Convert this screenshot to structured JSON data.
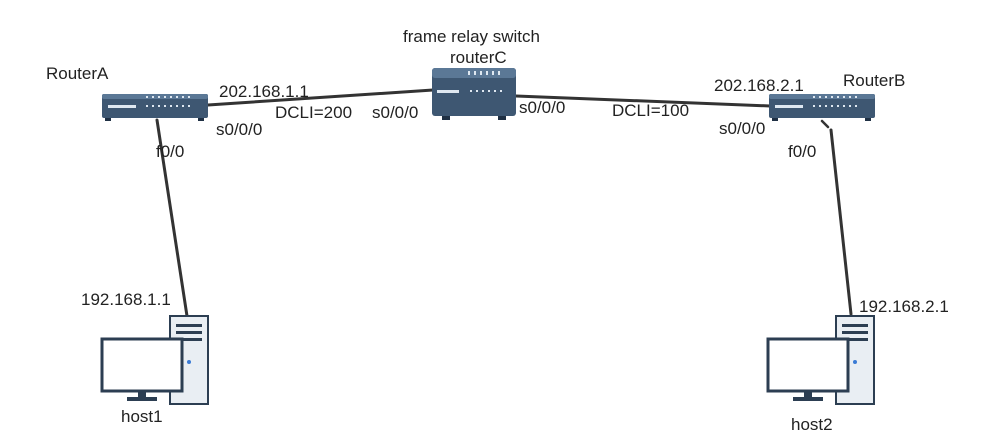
{
  "colors": {
    "device_body": "#3e5772",
    "device_top": "#5b7896",
    "device_dark": "#1f3044",
    "led": "#dfe8f1",
    "link": "#333333",
    "monitor_frame": "#2c3e52",
    "tower": "#e9eef3"
  },
  "labels": {
    "routerA_name": "RouterA",
    "routerB_name": "RouterB",
    "switch_title": "frame relay switch",
    "routerC_name": "routerC",
    "routerA_ip": "202.168.1.1",
    "routerB_ip": "202.168.2.1",
    "dcli_a": "DCLI=200",
    "dcli_b": "DCLI=100",
    "routerA_serial": "s0/0/0",
    "routerC_serial_left": "s0/0/0",
    "routerC_serial_right": "s0/0/0",
    "routerB_serial": "s0/0/0",
    "routerA_fe": "f0/0",
    "routerB_fe": "f0/0",
    "host1_ip": "192.168.1.1",
    "host2_ip": "192.168.2.1",
    "host1_name": "host1",
    "host2_name": "host2"
  },
  "icons": {
    "router": "router-icon",
    "switch": "frame-relay-switch-icon",
    "host": "desktop-computer-icon"
  }
}
